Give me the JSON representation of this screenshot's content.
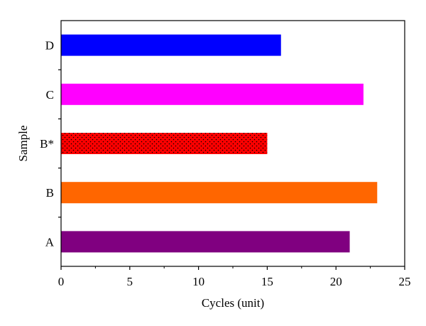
{
  "chart_data": {
    "type": "bar",
    "orientation": "horizontal",
    "title": "",
    "xlabel": "Cycles (unit)",
    "ylabel": "Sample",
    "xlim": [
      0,
      25
    ],
    "x_ticks": [
      "0",
      "5",
      "10",
      "15",
      "20",
      "25"
    ],
    "grid": false,
    "categories": [
      "A",
      "B",
      "B*",
      "C",
      "D"
    ],
    "values": [
      21,
      23,
      15,
      22,
      16
    ],
    "colors": [
      "#800080",
      "#ff6600",
      "#ff0000",
      "#ff00ff",
      "#0000ff"
    ],
    "patterns": [
      "solid",
      "solid",
      "dotted",
      "solid",
      "solid"
    ]
  }
}
